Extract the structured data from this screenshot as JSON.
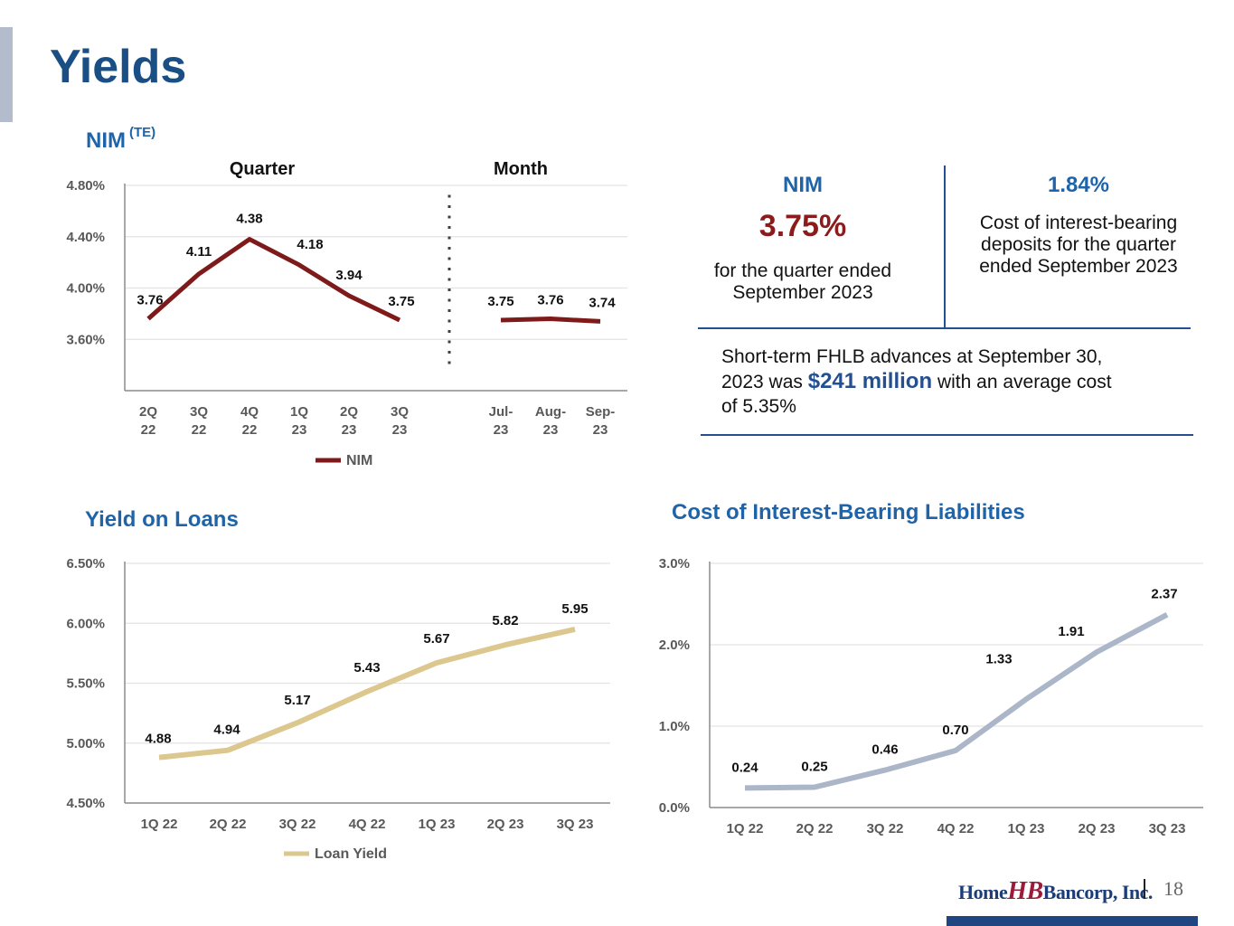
{
  "page": {
    "title": "Yields",
    "page_number": "18",
    "logo": {
      "left": "Home",
      "mark": "HB",
      "right": "Bancorp, Inc."
    }
  },
  "sections": {
    "nim_title": "NIM",
    "nim_superscript": "(TE)",
    "loans_title": "Yield on Loans",
    "cost_title": "Cost of Interest-Bearing Liabilities"
  },
  "kpis": {
    "nim": {
      "heading": "NIM",
      "value": "3.75%",
      "line1": "for the quarter ended",
      "line2": "September 2023"
    },
    "deposits": {
      "value": "1.84%",
      "line1": "Cost of interest-bearing",
      "line2": "deposits for the quarter",
      "line3": "ended September 2023"
    },
    "fhlb": {
      "part1": "Short-term FHLB advances at September 30,",
      "part2": "2023 was ",
      "highlight": "$241 million",
      "part3": " with an average cost",
      "part4": "of 5.35%"
    }
  },
  "colors": {
    "title_blue": "#1a4f86",
    "section_blue": "#1f64a8",
    "nim_red": "#7f1a1a",
    "loan_gold": "#dcc88e",
    "cost_gray_blue": "#abb6c9",
    "footer_blue": "#1f4680"
  },
  "chart_data": [
    {
      "id": "nim",
      "type": "line",
      "title": "NIM (TE)",
      "group_headers": [
        "Quarter",
        "Month"
      ],
      "categories": [
        [
          "2Q",
          "22"
        ],
        [
          "3Q",
          "22"
        ],
        [
          "4Q",
          "22"
        ],
        [
          "1Q",
          "23"
        ],
        [
          "2Q",
          "23"
        ],
        [
          "3Q",
          "23"
        ],
        [
          "Jul-",
          "23"
        ],
        [
          "Aug-",
          "23"
        ],
        [
          "Sep-",
          "23"
        ]
      ],
      "series": [
        {
          "name": "NIM",
          "segment": "Quarter",
          "values": [
            3.76,
            4.11,
            4.38,
            4.18,
            3.94,
            3.75
          ],
          "labels": [
            "3.76",
            "4.11",
            "4.38",
            "4.18",
            "3.94",
            "3.75"
          ]
        },
        {
          "name": "NIM",
          "segment": "Month",
          "values": [
            3.75,
            3.76,
            3.74
          ],
          "labels": [
            "3.75",
            "3.76",
            "3.74"
          ]
        }
      ],
      "yticks": [
        "4.80%",
        "4.40%",
        "4.00%",
        "3.60%"
      ],
      "ytick_values": [
        4.8,
        4.4,
        4.0,
        3.6
      ],
      "ylim": [
        3.2,
        4.8
      ],
      "grid": true,
      "legend": [
        "NIM"
      ],
      "legend_position": "bottom"
    },
    {
      "id": "loans",
      "type": "line",
      "title": "Yield on Loans",
      "categories": [
        "1Q 22",
        "2Q 22",
        "3Q 22",
        "4Q 22",
        "1Q 23",
        "2Q 23",
        "3Q 23"
      ],
      "series": [
        {
          "name": "Loan Yield",
          "values": [
            4.88,
            4.94,
            5.17,
            5.43,
            5.67,
            5.82,
            5.95
          ],
          "labels": [
            "4.88",
            "4.94",
            "5.17",
            "5.43",
            "5.67",
            "5.82",
            "5.95"
          ]
        }
      ],
      "yticks": [
        "6.50%",
        "6.00%",
        "5.50%",
        "5.00%",
        "4.50%"
      ],
      "ytick_values": [
        6.5,
        6.0,
        5.5,
        5.0,
        4.5
      ],
      "ylim": [
        4.5,
        6.5
      ],
      "grid": true,
      "legend": [
        "Loan Yield"
      ],
      "legend_position": "bottom"
    },
    {
      "id": "cost",
      "type": "line",
      "title": "Cost of Interest-Bearing Liabilities",
      "categories": [
        "1Q 22",
        "2Q 22",
        "3Q 22",
        "4Q 22",
        "1Q 23",
        "2Q 23",
        "3Q 23"
      ],
      "series": [
        {
          "name": "Cost of Interest-Bearing Liabilities",
          "values": [
            0.24,
            0.25,
            0.46,
            0.7,
            1.33,
            1.91,
            2.37
          ],
          "labels": [
            "0.24",
            "0.25",
            "0.46",
            "0.70",
            "1.33",
            "1.91",
            "2.37"
          ]
        }
      ],
      "yticks": [
        "3.0%",
        "2.0%",
        "1.0%",
        "0.0%"
      ],
      "ytick_values": [
        3.0,
        2.0,
        1.0,
        0.0
      ],
      "ylim": [
        0.0,
        3.0
      ],
      "grid": true,
      "legend": [],
      "legend_position": "none"
    }
  ]
}
